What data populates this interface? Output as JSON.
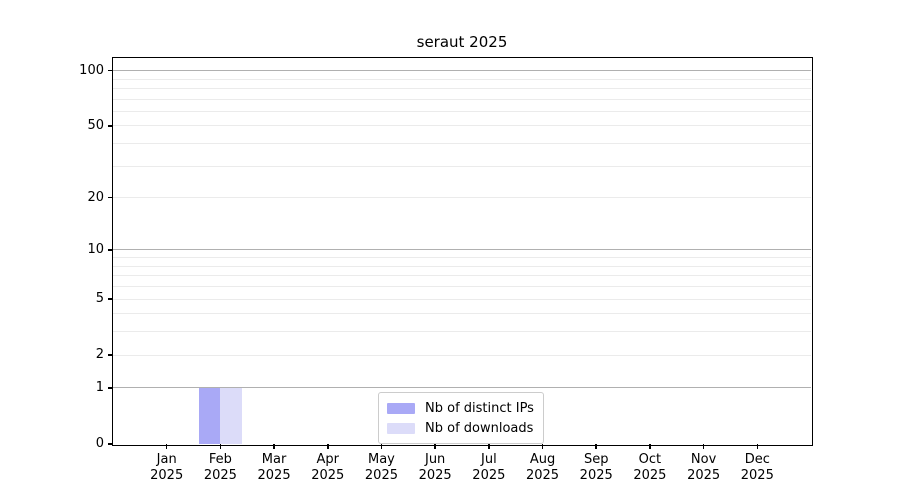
{
  "chart_data": {
    "type": "bar",
    "title": "seraut 2025",
    "x_categories": [
      "Jan",
      "Feb",
      "Mar",
      "Apr",
      "May",
      "Jun",
      "Jul",
      "Aug",
      "Sep",
      "Oct",
      "Nov",
      "Dec"
    ],
    "x_year": "2025",
    "series": [
      {
        "name": "Nb of distinct IPs",
        "color": "#a9a9f6",
        "values": [
          0,
          1,
          0,
          0,
          0,
          0,
          0,
          0,
          0,
          0,
          0,
          0
        ]
      },
      {
        "name": "Nb of downloads",
        "color": "#dcdcf9",
        "values": [
          0,
          1,
          0,
          0,
          0,
          0,
          0,
          0,
          0,
          0,
          0,
          0
        ]
      }
    ],
    "y_ticks": [
      0,
      1,
      2,
      5,
      10,
      20,
      50,
      100
    ],
    "y_scale": "ln(1+y)",
    "ylim": [
      0,
      117
    ],
    "xlim_months": 13,
    "grid_major": [
      1,
      10,
      100
    ],
    "grid_minor": [
      2,
      3,
      4,
      5,
      6,
      7,
      8,
      9,
      20,
      30,
      40,
      50,
      60,
      70,
      80,
      90
    ],
    "grid_major_color": "#b0b0b0",
    "grid_minor_color": "#ebebeb",
    "legend_position": "bottom-center",
    "legend_entries": [
      "Nb of distinct IPs",
      "Nb of downloads"
    ]
  }
}
